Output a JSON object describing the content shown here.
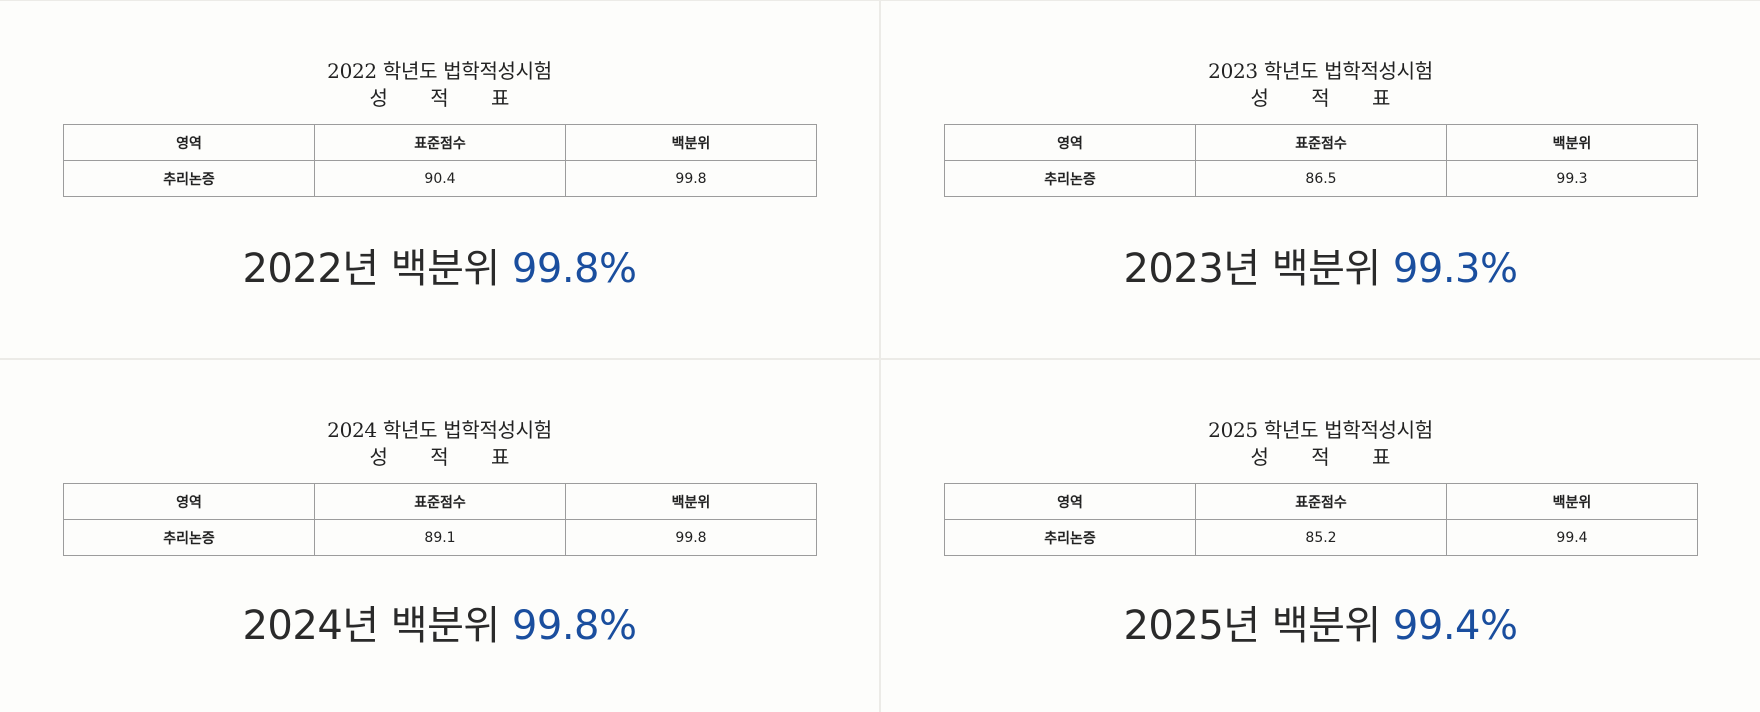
{
  "cards": [
    {
      "exam_title": "2022 학년도 법학적성시험",
      "sheet_title": "성 적 표",
      "headers": [
        "영역",
        "표준점수",
        "백분위"
      ],
      "row": {
        "area": "추리논증",
        "standard_score": "90.4",
        "percentile": "99.8"
      },
      "summary_prefix": "2022년 백분위",
      "summary_value": "99.8%"
    },
    {
      "exam_title": "2023 학년도 법학적성시험",
      "sheet_title": "성 적 표",
      "headers": [
        "영역",
        "표준점수",
        "백분위"
      ],
      "row": {
        "area": "추리논증",
        "standard_score": "86.5",
        "percentile": "99.3"
      },
      "summary_prefix": "2023년 백분위",
      "summary_value": "99.3%"
    },
    {
      "exam_title": "2024 학년도 법학적성시험",
      "sheet_title": "성 적 표",
      "headers": [
        "영역",
        "표준점수",
        "백분위"
      ],
      "row": {
        "area": "추리논증",
        "standard_score": "89.1",
        "percentile": "99.8"
      },
      "summary_prefix": "2024년 백분위",
      "summary_value": "99.8%"
    },
    {
      "exam_title": "2025 학년도 법학적성시험",
      "sheet_title": "성 적 표",
      "headers": [
        "영역",
        "표준점수",
        "백분위"
      ],
      "row": {
        "area": "추리논증",
        "standard_score": "85.2",
        "percentile": "99.4"
      },
      "summary_prefix": "2025년 백분위",
      "summary_value": "99.4%"
    }
  ],
  "colors": {
    "accent": "#1a4e9e",
    "text": "#222222",
    "background": "#fdfdfb",
    "border": "#9c9c9c"
  }
}
